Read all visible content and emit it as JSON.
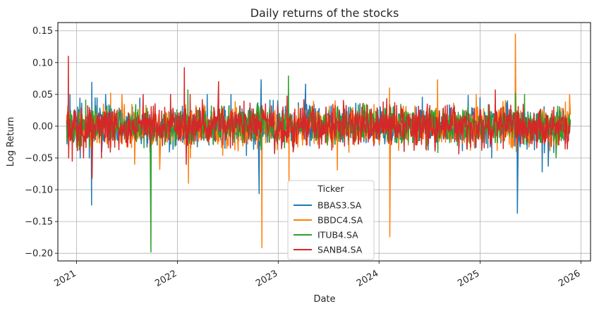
{
  "chart_data": {
    "type": "line",
    "title": "Daily returns of the stocks",
    "xlabel": "Date",
    "ylabel": "Log Return",
    "xlim": [
      "2020-10-25",
      "2026-02-05"
    ],
    "ylim": [
      -0.212,
      0.163
    ],
    "x_ticks": [
      "2021-01-01",
      "2022-01-01",
      "2023-01-01",
      "2024-01-01",
      "2025-01-01",
      "2026-01-01"
    ],
    "x_tick_labels": [
      "2021",
      "2022",
      "2023",
      "2024",
      "2025",
      "2026"
    ],
    "y_ticks": [
      -0.2,
      -0.15,
      -0.1,
      -0.05,
      0.0,
      0.05,
      0.1,
      0.15
    ],
    "y_tick_labels": [
      "−0.20",
      "−0.15",
      "−0.10",
      "−0.05",
      "0.00",
      "0.05",
      "0.10",
      "0.15"
    ],
    "x_start": "2020-11-26",
    "x_end": "2025-11-24",
    "grid": true,
    "legend": {
      "title": "Ticker",
      "placement": "lower center"
    },
    "series": [
      {
        "name": "BBAS3.SA",
        "color": "#1f77b4",
        "typical_amplitude": 0.016,
        "spikes": [
          {
            "date": "2020-12-08",
            "value": 0.05
          },
          {
            "date": "2021-02-24",
            "value": -0.124
          },
          {
            "date": "2021-02-25",
            "value": 0.069
          },
          {
            "date": "2022-10-24",
            "value": -0.106
          },
          {
            "date": "2022-10-31",
            "value": 0.073
          },
          {
            "date": "2023-04-10",
            "value": 0.066
          },
          {
            "date": "2025-05-16",
            "value": -0.137
          },
          {
            "date": "2025-08-14",
            "value": -0.072
          },
          {
            "date": "2025-09-05",
            "value": -0.063
          }
        ]
      },
      {
        "name": "BBDC4.SA",
        "color": "#ff7f0e",
        "typical_amplitude": 0.015,
        "spikes": [
          {
            "date": "2021-05-04",
            "value": 0.052
          },
          {
            "date": "2021-07-30",
            "value": -0.06
          },
          {
            "date": "2021-10-29",
            "value": -0.068
          },
          {
            "date": "2022-02-10",
            "value": -0.09
          },
          {
            "date": "2022-11-03",
            "value": -0.191
          },
          {
            "date": "2023-02-09",
            "value": -0.088
          },
          {
            "date": "2023-08-03",
            "value": -0.069
          },
          {
            "date": "2024-02-08",
            "value": 0.06
          },
          {
            "date": "2024-02-09",
            "value": -0.174
          },
          {
            "date": "2024-07-31",
            "value": 0.073
          },
          {
            "date": "2025-05-09",
            "value": 0.145
          },
          {
            "date": "2025-05-12",
            "value": -0.04
          }
        ]
      },
      {
        "name": "ITUB4.SA",
        "color": "#2ca02c",
        "typical_amplitude": 0.014,
        "spikes": [
          {
            "date": "2021-09-27",
            "value": -0.198
          },
          {
            "date": "2022-02-08",
            "value": 0.057
          },
          {
            "date": "2023-02-07",
            "value": 0.079
          },
          {
            "date": "2025-05-09",
            "value": 0.052
          }
        ]
      },
      {
        "name": "SANB4.SA",
        "color": "#d62728",
        "typical_amplitude": 0.016,
        "spikes": [
          {
            "date": "2020-12-02",
            "value": 0.11
          },
          {
            "date": "2020-12-03",
            "value": -0.05
          },
          {
            "date": "2020-12-16",
            "value": -0.055
          },
          {
            "date": "2021-02-26",
            "value": -0.082
          },
          {
            "date": "2022-01-26",
            "value": 0.092
          },
          {
            "date": "2022-02-02",
            "value": -0.06
          },
          {
            "date": "2022-05-30",
            "value": 0.07
          },
          {
            "date": "2025-02-25",
            "value": 0.057
          }
        ]
      }
    ]
  }
}
